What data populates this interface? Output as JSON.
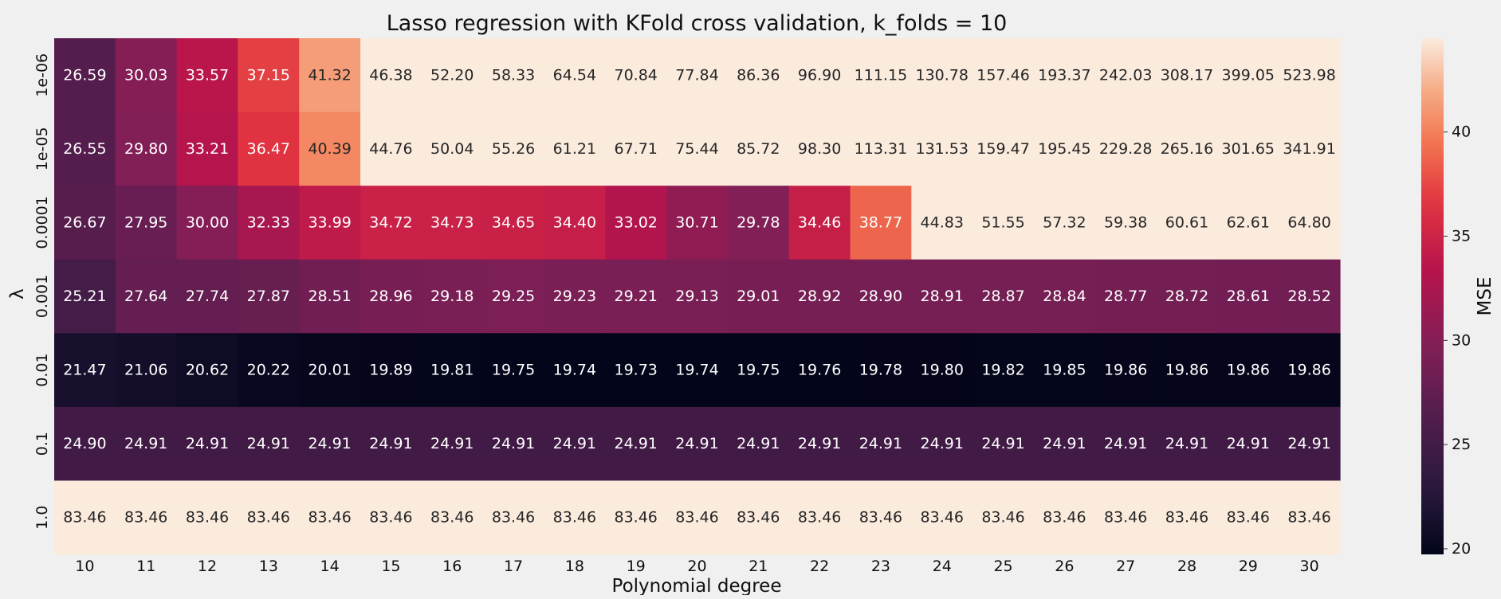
{
  "chart_data": {
    "type": "heatmap",
    "title": "Lasso regression with KFold cross validation, k_folds = 10",
    "xlabel": "Polynomial degree",
    "ylabel": "λ",
    "colorbar_label": "MSE",
    "x_categories": [
      "10",
      "11",
      "12",
      "13",
      "14",
      "15",
      "16",
      "17",
      "18",
      "19",
      "20",
      "21",
      "22",
      "23",
      "24",
      "25",
      "26",
      "27",
      "28",
      "29",
      "30"
    ],
    "y_categories": [
      "1e-06",
      "1e-05",
      "0.0001",
      "0.001",
      "0.01",
      "0.1",
      "1.0"
    ],
    "values": [
      [
        26.59,
        30.03,
        33.57,
        37.15,
        41.32,
        46.38,
        52.2,
        58.33,
        64.54,
        70.84,
        77.84,
        86.36,
        96.9,
        111.15,
        130.78,
        157.46,
        193.37,
        242.03,
        308.17,
        399.05,
        523.98
      ],
      [
        26.55,
        29.8,
        33.21,
        36.47,
        40.39,
        44.76,
        50.04,
        55.26,
        61.21,
        67.71,
        75.44,
        85.72,
        98.3,
        113.31,
        131.53,
        159.47,
        195.45,
        229.28,
        265.16,
        301.65,
        341.91
      ],
      [
        26.67,
        27.95,
        30.0,
        32.33,
        33.99,
        34.72,
        34.73,
        34.65,
        34.4,
        33.02,
        30.71,
        29.78,
        34.46,
        38.77,
        44.83,
        51.55,
        57.32,
        59.38,
        60.61,
        62.61,
        64.8
      ],
      [
        25.21,
        27.64,
        27.74,
        27.87,
        28.51,
        28.96,
        29.18,
        29.25,
        29.23,
        29.21,
        29.13,
        29.01,
        28.92,
        28.9,
        28.91,
        28.87,
        28.84,
        28.77,
        28.72,
        28.61,
        28.52
      ],
      [
        21.47,
        21.06,
        20.62,
        20.22,
        20.01,
        19.89,
        19.81,
        19.75,
        19.74,
        19.73,
        19.74,
        19.75,
        19.76,
        19.78,
        19.8,
        19.82,
        19.85,
        19.86,
        19.86,
        19.86,
        19.86
      ],
      [
        24.9,
        24.91,
        24.91,
        24.91,
        24.91,
        24.91,
        24.91,
        24.91,
        24.91,
        24.91,
        24.91,
        24.91,
        24.91,
        24.91,
        24.91,
        24.91,
        24.91,
        24.91,
        24.91,
        24.91,
        24.91
      ],
      [
        83.46,
        83.46,
        83.46,
        83.46,
        83.46,
        83.46,
        83.46,
        83.46,
        83.46,
        83.46,
        83.46,
        83.46,
        83.46,
        83.46,
        83.46,
        83.46,
        83.46,
        83.46,
        83.46,
        83.46,
        83.46
      ]
    ],
    "color_range": [
      19.73,
      44.5
    ],
    "colorbar_ticks": [
      20,
      25,
      30,
      35,
      40
    ],
    "colormap": "rocket",
    "annotation_decimals": 2
  }
}
